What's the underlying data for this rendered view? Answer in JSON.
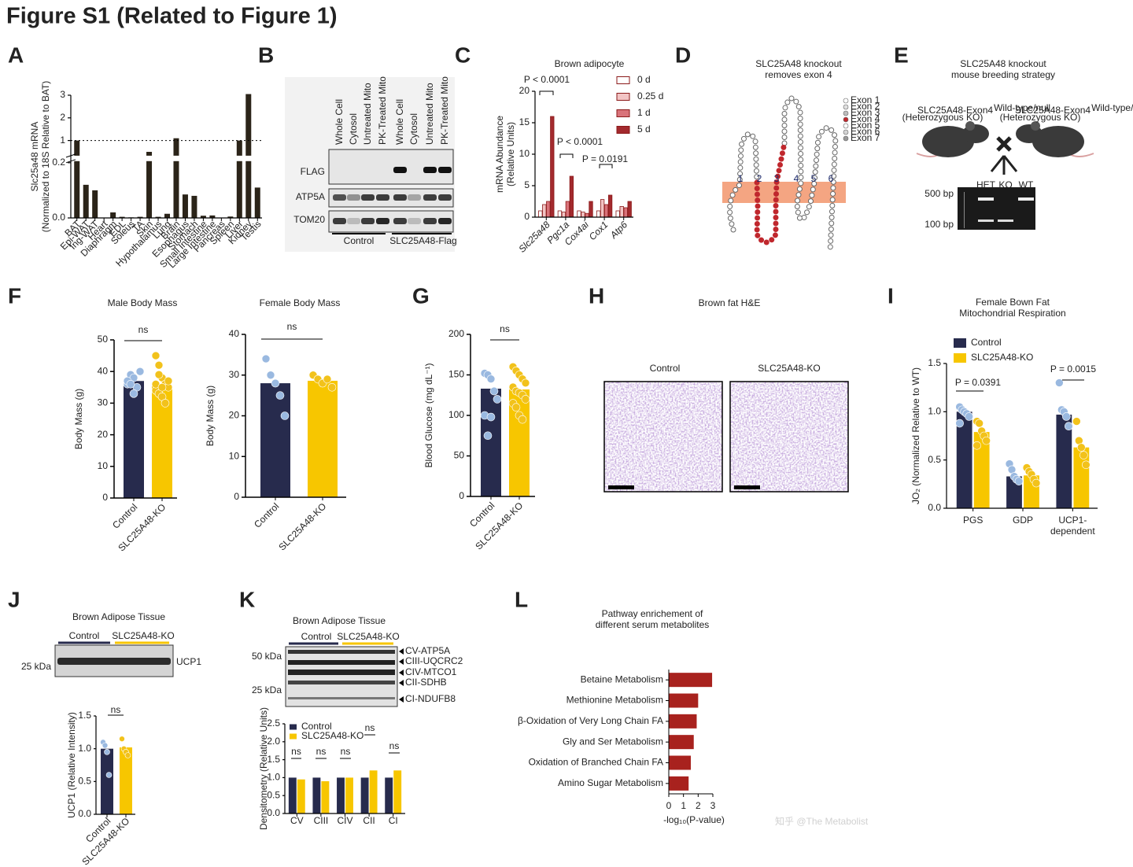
{
  "title": "Figure S1 (Related to Figure 1)",
  "panel_labels": [
    "A",
    "B",
    "C",
    "D",
    "E",
    "F",
    "G",
    "H",
    "I",
    "J",
    "K",
    "L"
  ],
  "chart_data": [
    {
      "type": "bar",
      "ylabel": "Slc25a48 mRNA\n(Normalized to 18S Relative to BAT)",
      "categories": [
        "BAT",
        "Epi-WAT",
        "Ing-WAT",
        "Heart",
        "Diaphragm",
        "EDL",
        "Soleus",
        "TA",
        "Skin",
        "Hypothalamus",
        "Lung",
        "Brain",
        "Esophagus",
        "Stomach",
        "Small Intestine",
        "Large Intestine",
        "Pancreas",
        "Spleen",
        "Liver",
        "Kidney",
        "Testis"
      ],
      "values": [
        1.0,
        0.12,
        0.1,
        0.0,
        0.02,
        0.004,
        0.002,
        0.004,
        0.5,
        0.004,
        0.015,
        1.1,
        0.085,
        0.08,
        0.008,
        0.009,
        0.001,
        0.005,
        1.0,
        3.05,
        0.11
      ],
      "color": "#2b2419",
      "ylim": [
        0,
        3
      ],
      "ybreak": [
        0.2,
        0.4
      ],
      "yticks": [
        {
          "value": 0,
          "label": "0.0"
        },
        0.2,
        1,
        2,
        3
      ],
      "reference_line": 1
    },
    {
      "type": "grouped-bar",
      "title": "Brown adipocyte",
      "ylabel": "mRNA Abundance\n(Relative Units)",
      "categories": [
        "Slc25a48",
        "Pgc1a",
        "Cox4ai",
        "Cox1",
        "Atp6"
      ],
      "series": [
        {
          "name": "0 d",
          "color": "#ffffff",
          "values": [
            1,
            1,
            1,
            1,
            1
          ]
        },
        {
          "name": "0.25 d",
          "color": "#f2c4c4",
          "values": [
            2,
            0.8,
            0.8,
            2.8,
            1.7
          ]
        },
        {
          "name": "1 d",
          "color": "#d9737a",
          "values": [
            2.5,
            2.5,
            0.6,
            2,
            1.5
          ]
        },
        {
          "name": "5 d",
          "color": "#a32a2e",
          "values": [
            16,
            6.5,
            2.5,
            3.5,
            2.5
          ]
        }
      ],
      "ylim": [
        0,
        20
      ],
      "yticks": [
        0,
        5,
        10,
        15,
        20
      ],
      "annotations": [
        "P < 0.0001",
        "P < 0.0001",
        "P = 0.0191"
      ]
    },
    {
      "type": "bar",
      "title": "Male Body Mass",
      "ylabel": "Body Mass (g)",
      "categories": [
        "Control",
        "SLC25A48-KO"
      ],
      "values": [
        37,
        35.5
      ],
      "colors": [
        "#272b4d",
        "#f7c600"
      ],
      "point_colors": [
        "#9ab9e0",
        "#f2c21b"
      ],
      "points": [
        [
          36,
          39,
          38,
          35,
          40,
          37,
          36,
          33
        ],
        [
          45,
          42,
          38,
          36,
          35,
          34,
          33,
          32,
          30,
          37,
          36,
          39,
          35
        ]
      ],
      "ylim": [
        0,
        50
      ],
      "yticks": [
        0,
        10,
        20,
        30,
        40,
        50
      ],
      "annotations": [
        "ns"
      ]
    },
    {
      "type": "bar",
      "title": "Female Body Mass",
      "ylabel": "Body Mass (g)",
      "categories": [
        "Control",
        "SLC25A48-KO"
      ],
      "values": [
        28,
        28.6
      ],
      "colors": [
        "#272b4d",
        "#f7c600"
      ],
      "point_colors": [
        "#9ab9e0",
        "#f2c21b"
      ],
      "points": [
        [
          34,
          30,
          28,
          25,
          20
        ],
        [
          30,
          29,
          28,
          29,
          27
        ]
      ],
      "ylim": [
        0,
        40
      ],
      "yticks": [
        0,
        10,
        20,
        30,
        40
      ],
      "annotations": [
        "ns"
      ]
    },
    {
      "type": "bar",
      "ylabel": "Blood Glucose (mg dL⁻¹)",
      "categories": [
        "Control",
        "SLC25A48-KO"
      ],
      "values": [
        133,
        132
      ],
      "colors": [
        "#272b4d",
        "#f7c600"
      ],
      "point_colors": [
        "#9ab9e0",
        "#f2c21b"
      ],
      "points": [
        [
          152,
          150,
          145,
          130,
          120,
          100,
          75,
          98
        ],
        [
          160,
          155,
          150,
          145,
          140,
          135,
          130,
          128,
          125,
          120,
          115,
          110,
          100,
          95
        ]
      ],
      "ylim": [
        0,
        200
      ],
      "yticks": [
        0,
        50,
        100,
        150,
        200
      ],
      "annotations": [
        "ns"
      ]
    },
    {
      "type": "grouped-bar",
      "title": "Female Bown Fat\nMitochondrial Respiration",
      "ylabel": "JO₂ (Normalized Relative to WT)",
      "categories": [
        "PGS",
        "GDP",
        "UCP1-\ndependent"
      ],
      "series": [
        {
          "name": "Control",
          "color": "#272b4d",
          "point_color": "#9ab9e0",
          "values": [
            1.0,
            0.33,
            0.97
          ],
          "points": [
            [
              1.05,
              1.02,
              1.0,
              0.98,
              0.95,
              0.88
            ],
            [
              0.46,
              0.4,
              0.33,
              0.3,
              0.28
            ],
            [
              1.3,
              1.02,
              1.0,
              0.95,
              0.85
            ]
          ]
        },
        {
          "name": "SLC25A48-KO",
          "color": "#f7c600",
          "point_color": "#f2c21b",
          "values": [
            0.79,
            0.34,
            0.63
          ],
          "points": [
            [
              0.9,
              0.88,
              0.8,
              0.75,
              0.7,
              0.65
            ],
            [
              0.42,
              0.38,
              0.35,
              0.3,
              0.26
            ],
            [
              0.9,
              0.7,
              0.63,
              0.55,
              0.45
            ]
          ]
        }
      ],
      "ylim": [
        0,
        1.5
      ],
      "yticks": [
        {
          "value": 0,
          "label": "0.0"
        },
        0.5,
        {
          "value": 1,
          "label": "1.0"
        },
        1.5
      ],
      "legend": "top-left",
      "annotations": [
        "P = 0.0391",
        "P = 0.0015"
      ]
    },
    {
      "type": "bar",
      "ylabel": "UCP1 (Relative Intensity)",
      "categories": [
        "Control",
        "SLC25A48-KO"
      ],
      "values": [
        1.0,
        1.02
      ],
      "colors": [
        "#272b4d",
        "#f7c600"
      ],
      "point_colors": [
        "#9ab9e0",
        "#f2c21b"
      ],
      "points": [
        [
          1.1,
          1.05,
          0.95,
          0.6
        ],
        [
          1.15,
          1.0,
          0.95,
          0.9
        ]
      ],
      "ylim": [
        0,
        1.5
      ],
      "yticks": [
        {
          "value": 0,
          "label": "0.0"
        },
        0.5,
        {
          "value": 1,
          "label": "1.0"
        },
        1.5
      ],
      "annotations": [
        "ns"
      ]
    },
    {
      "type": "grouped-bar",
      "ylabel": "Densitometry (Relative Units)",
      "categories": [
        "CV",
        "CIII",
        "CIV",
        "CII",
        "CI"
      ],
      "series": [
        {
          "name": "Control",
          "color": "#272b4d",
          "values": [
            1.0,
            1.0,
            1.0,
            1.0,
            1.0
          ]
        },
        {
          "name": "SLC25A48-KO",
          "color": "#f7c600",
          "values": [
            0.95,
            0.9,
            1.0,
            1.2,
            1.2
          ]
        }
      ],
      "ylim": [
        0,
        2.5
      ],
      "yticks": [
        {
          "value": 0,
          "label": "0.0"
        },
        0.5,
        {
          "value": 1,
          "label": "1.0"
        },
        1.5,
        {
          "value": 2,
          "label": "2.0"
        },
        2.5
      ],
      "legend": "top-left",
      "annotations": [
        "ns",
        "ns",
        "ns",
        "ns",
        "ns"
      ]
    },
    {
      "type": "hbar",
      "title": "Pathway enrichement of\ndifferent serum metabolites",
      "xlabel": "-log₁₀(P-value)",
      "categories": [
        "Betaine Metabolism",
        "Methionine Metabolism",
        "β-Oxidation of Very Long Chain FA",
        "Gly and Ser Metabolism",
        "Oxidation of Branched Chain FA",
        "Amino Sugar Metabolism"
      ],
      "values": [
        2.95,
        2.0,
        1.9,
        1.7,
        1.5,
        1.35
      ],
      "color": "#a8221e",
      "xlim": [
        0,
        3
      ],
      "xticks": [
        0,
        1,
        2,
        3
      ]
    }
  ],
  "blot_b": {
    "lanes": [
      "Whole Cell",
      "Cytosol",
      "Untreated Mito",
      "PK-Treated Mito",
      "Whole Cell",
      "Cytosol",
      "Untreated Mito",
      "PK-Treated Mito"
    ],
    "rows": [
      "FLAG",
      "ATP5A",
      "TOM20"
    ],
    "groups": [
      "Control",
      "SLC25A48-Flag"
    ]
  },
  "diagram_d": {
    "title": "SLC25A48 knockout\nremoves exon 4",
    "legend": [
      "Exon 1",
      "Exon 2",
      "Exon 3",
      "Exon 4",
      "Exon 5",
      "Exon 6",
      "Exon 7"
    ],
    "helix_numbers": [
      "1",
      "2",
      "3",
      "4",
      "5",
      "6"
    ]
  },
  "breeding_e": {
    "title": "SLC25A48 knockout\nmouse breeding strategy",
    "parents": [
      {
        "genotype": "SLC25A48-Exon4",
        "superscript": "Wild-type/null",
        "note": "(Heterozygous KO)"
      },
      {
        "genotype": "SLC25A48-Exon4",
        "superscript": "Wild-type/null",
        "note": "(Heterozygous KO)"
      }
    ],
    "gel_lanes": [
      "HET",
      "KO",
      "WT"
    ],
    "markers": [
      "500 bp",
      "100 bp"
    ]
  },
  "histology_h": {
    "title": "Brown fat H&E",
    "labels": [
      "Control",
      "SLC25A48-KO"
    ]
  },
  "blot_j": {
    "title": "Brown Adipose Tissue",
    "groups": [
      "Control",
      "SLC25A48-KO"
    ],
    "marker": "25 kDa",
    "band": "UCP1"
  },
  "blot_k": {
    "title": "Brown Adipose Tissue",
    "groups": [
      "Control",
      "SLC25A48-KO"
    ],
    "markers": [
      "50 kDa",
      "25 kDa"
    ],
    "bands": [
      "CV-ATP5A",
      "CIII-UQCRC2",
      "CIV-MTCO1",
      "CII-SDHB",
      "CI-NDUFB8"
    ]
  },
  "watermark": "知乎 @The Metabolist"
}
